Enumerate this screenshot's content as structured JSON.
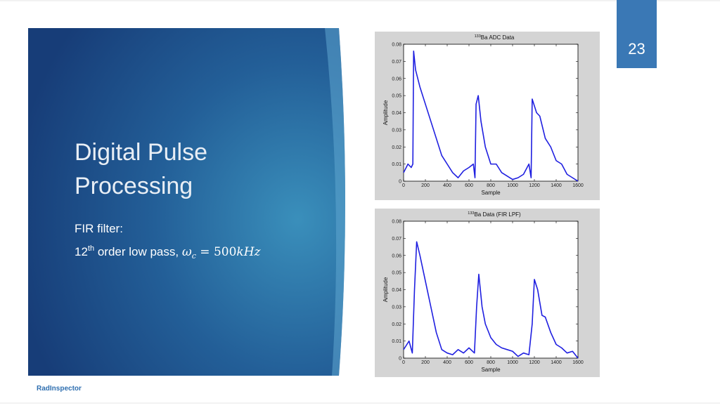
{
  "slide": {
    "page_number": "23",
    "title_lines": [
      "Digital Pulse",
      "Processing"
    ],
    "bullets": [
      {
        "text": "FIR filter:"
      },
      {
        "parts": [
          "12",
          "th",
          " order low pass, ",
          "ω",
          "c",
          " = 500",
          "kHz"
        ]
      }
    ],
    "footer": "RadInspector"
  },
  "chart_data": [
    {
      "type": "line",
      "title_superscript": "133",
      "title": "Ba ADC Data",
      "xlabel": "Sample",
      "ylabel": "Amplitude",
      "color": "#1f1fe0",
      "x": [
        0,
        40,
        70,
        85,
        92,
        110,
        150,
        200,
        250,
        300,
        350,
        400,
        450,
        500,
        550,
        600,
        640,
        655,
        665,
        685,
        710,
        750,
        800,
        850,
        900,
        950,
        1000,
        1050,
        1100,
        1150,
        1170,
        1180,
        1195,
        1220,
        1250,
        1300,
        1350,
        1400,
        1450,
        1500,
        1550,
        1600
      ],
      "values": [
        0.005,
        0.01,
        0.008,
        0.01,
        0.076,
        0.065,
        0.055,
        0.045,
        0.035,
        0.025,
        0.015,
        0.01,
        0.005,
        0.002,
        0.006,
        0.008,
        0.01,
        0.002,
        0.045,
        0.05,
        0.035,
        0.02,
        0.01,
        0.01,
        0.005,
        0.003,
        0.001,
        0.002,
        0.004,
        0.01,
        0.002,
        0.048,
        0.045,
        0.04,
        0.038,
        0.025,
        0.02,
        0.012,
        0.01,
        0.004,
        0.002,
        0
      ],
      "xlim": [
        0,
        1600
      ],
      "xticks": [
        0,
        200,
        400,
        600,
        800,
        1000,
        1200,
        1400,
        1600
      ],
      "ylim": [
        0,
        0.08
      ],
      "yticks": [
        0,
        0.01,
        0.02,
        0.03,
        0.04,
        0.05,
        0.06,
        0.07,
        0.08
      ]
    },
    {
      "type": "line",
      "title_superscript": "133",
      "title": "Ba Data (FIR LPF)",
      "xlabel": "Sample",
      "ylabel": "Amplitude",
      "color": "#1f1fe0",
      "x": [
        0,
        50,
        80,
        100,
        120,
        150,
        200,
        250,
        300,
        350,
        400,
        450,
        500,
        550,
        600,
        650,
        670,
        690,
        720,
        750,
        800,
        850,
        900,
        950,
        1000,
        1050,
        1100,
        1150,
        1180,
        1200,
        1230,
        1270,
        1300,
        1350,
        1400,
        1450,
        1500,
        1550,
        1600
      ],
      "values": [
        0.005,
        0.01,
        0.003,
        0.04,
        0.068,
        0.06,
        0.045,
        0.03,
        0.015,
        0.005,
        0.003,
        0.002,
        0.005,
        0.003,
        0.006,
        0.003,
        0.03,
        0.049,
        0.03,
        0.02,
        0.012,
        0.008,
        0.006,
        0.005,
        0.004,
        0.001,
        0.003,
        0.002,
        0.02,
        0.046,
        0.04,
        0.025,
        0.024,
        0.015,
        0.008,
        0.006,
        0.003,
        0.004,
        0
      ],
      "xlim": [
        0,
        1600
      ],
      "xticks": [
        0,
        200,
        400,
        600,
        800,
        1000,
        1200,
        1400,
        1600
      ],
      "ylim": [
        0,
        0.08
      ],
      "yticks": [
        0,
        0.01,
        0.02,
        0.03,
        0.04,
        0.05,
        0.06,
        0.07,
        0.08
      ]
    }
  ]
}
